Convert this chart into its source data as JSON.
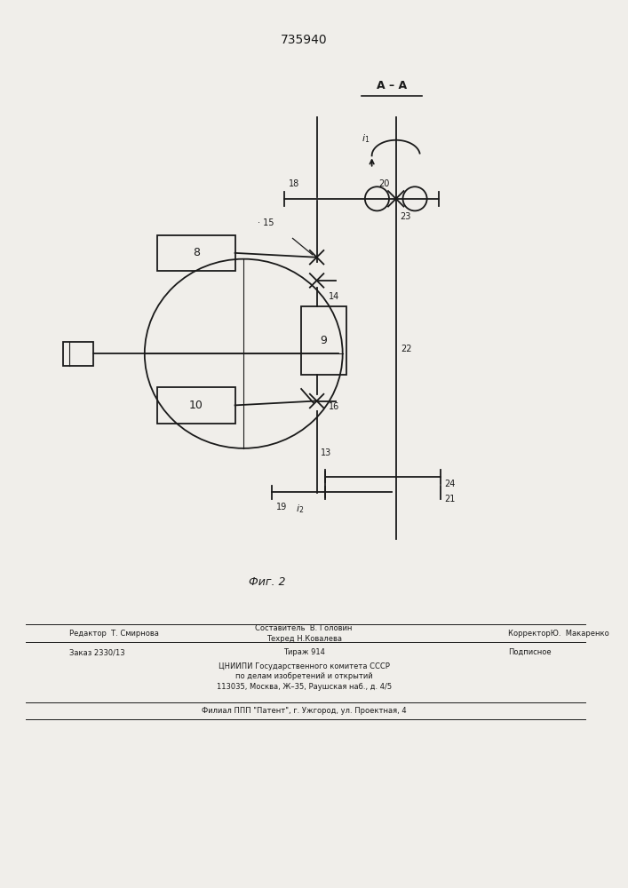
{
  "title": "735940",
  "section_label": "А – А",
  "fig_label": "Фиг. 2",
  "bg_color": "#f0eeea",
  "line_color": "#1a1a1a",
  "lw": 1.3
}
